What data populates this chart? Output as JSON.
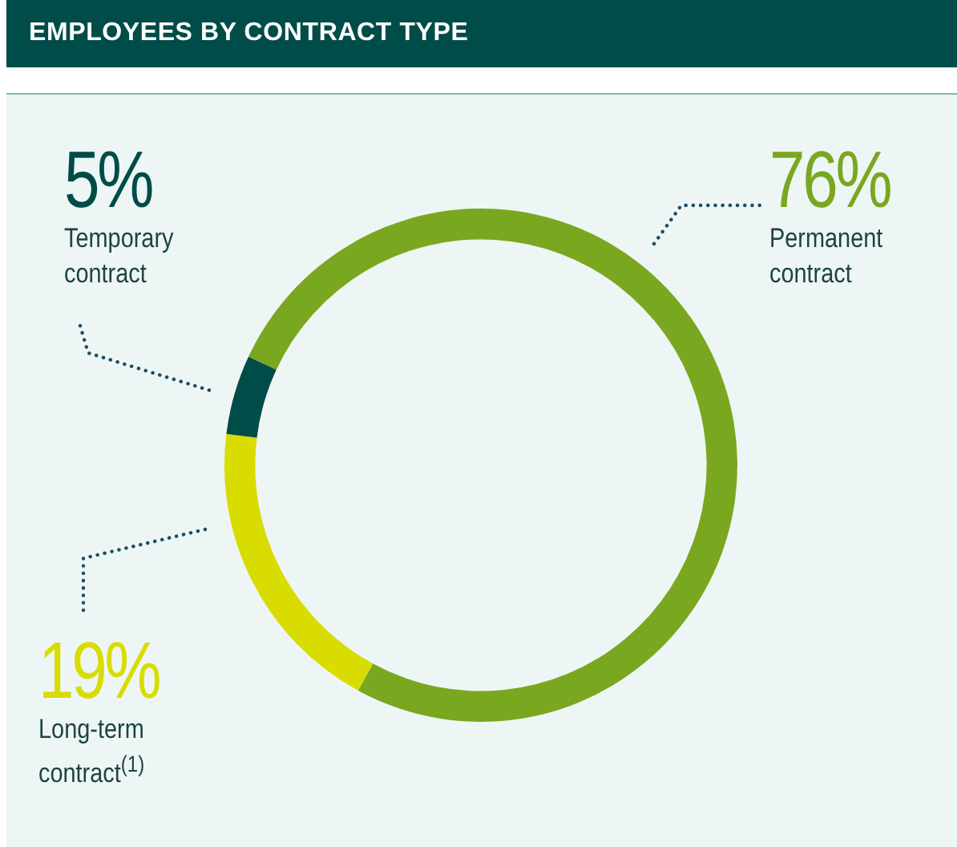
{
  "chart_data": {
    "type": "donut",
    "title": "EMPLOYEES BY CONTRACT TYPE",
    "categories": [
      "Permanent contract",
      "Long-term contract$^{(1)}$",
      "Temporary contract"
    ],
    "values": [
      76,
      19,
      5
    ],
    "colors": [
      "#7aa720",
      "#d8dc00",
      "#004c48"
    ],
    "value_labels": [
      "76%",
      "19%",
      "5%"
    ],
    "legend": false
  }
}
